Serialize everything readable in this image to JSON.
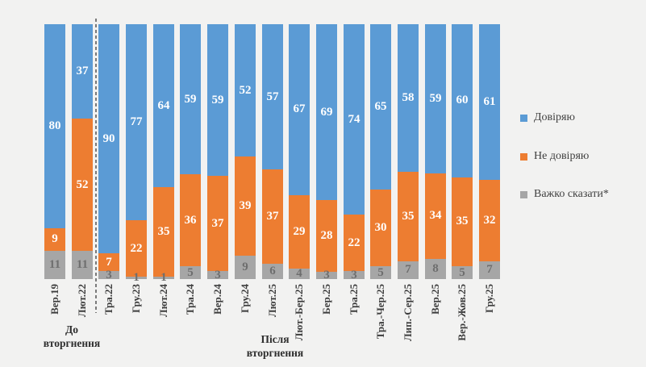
{
  "colors": {
    "background": "#F2F2F1",
    "trust": "#5B9BD5",
    "distrust": "#ED7D31",
    "hard_to_say": "#A6A6A6",
    "gray_value_label": "#6E6E6E",
    "divider": "#7A7A7A"
  },
  "legend": [
    {
      "label": "Довіряю",
      "color": "#5B9BD5"
    },
    {
      "label": "Не довіряю",
      "color": "#ED7D31"
    },
    {
      "label": "Важко сказати*",
      "color": "#A6A6A6"
    }
  ],
  "groups": {
    "before": [
      "До",
      "вторгнення"
    ],
    "after": [
      "Після",
      "вторгнення"
    ]
  },
  "chart_data": {
    "type": "bar",
    "variant": "stacked-percent-column",
    "grid": false,
    "legend_position": "right",
    "ylim": [
      0,
      100
    ],
    "categories": [
      "Вер.19",
      "Лют.22",
      "Тра.22",
      "Гру.23",
      "Лют.24",
      "Тра.24",
      "Вер.24",
      "Гру.24",
      "Лют.25",
      "Лют.-Бер.25",
      "Бер.25",
      "Тра.25",
      "Тра.-Чер.25",
      "Лип.-Сер.25",
      "Вер.25",
      "Вер.-Жов.25",
      "Гру.25"
    ],
    "series": [
      {
        "name": "Довіряю",
        "color": "#5B9BD5",
        "values": [
          80,
          37,
          90,
          77,
          64,
          59,
          59,
          52,
          57,
          67,
          69,
          74,
          65,
          58,
          59,
          60,
          61
        ]
      },
      {
        "name": "Не довіряю",
        "color": "#ED7D31",
        "values": [
          9,
          52,
          7,
          22,
          35,
          36,
          37,
          39,
          37,
          29,
          28,
          22,
          30,
          35,
          34,
          35,
          32
        ]
      },
      {
        "name": "Важко сказати*",
        "color": "#A6A6A6",
        "values": [
          11,
          11,
          3,
          1,
          1,
          5,
          3,
          9,
          6,
          4,
          3,
          3,
          5,
          7,
          8,
          5,
          7
        ]
      }
    ],
    "divider_between": [
      "Лют.22",
      "Тра.22"
    ],
    "group_before_categories": [
      "Вер.19",
      "Лют.22"
    ],
    "group_after_categories": [
      "Тра.22",
      "Гру.25"
    ]
  }
}
